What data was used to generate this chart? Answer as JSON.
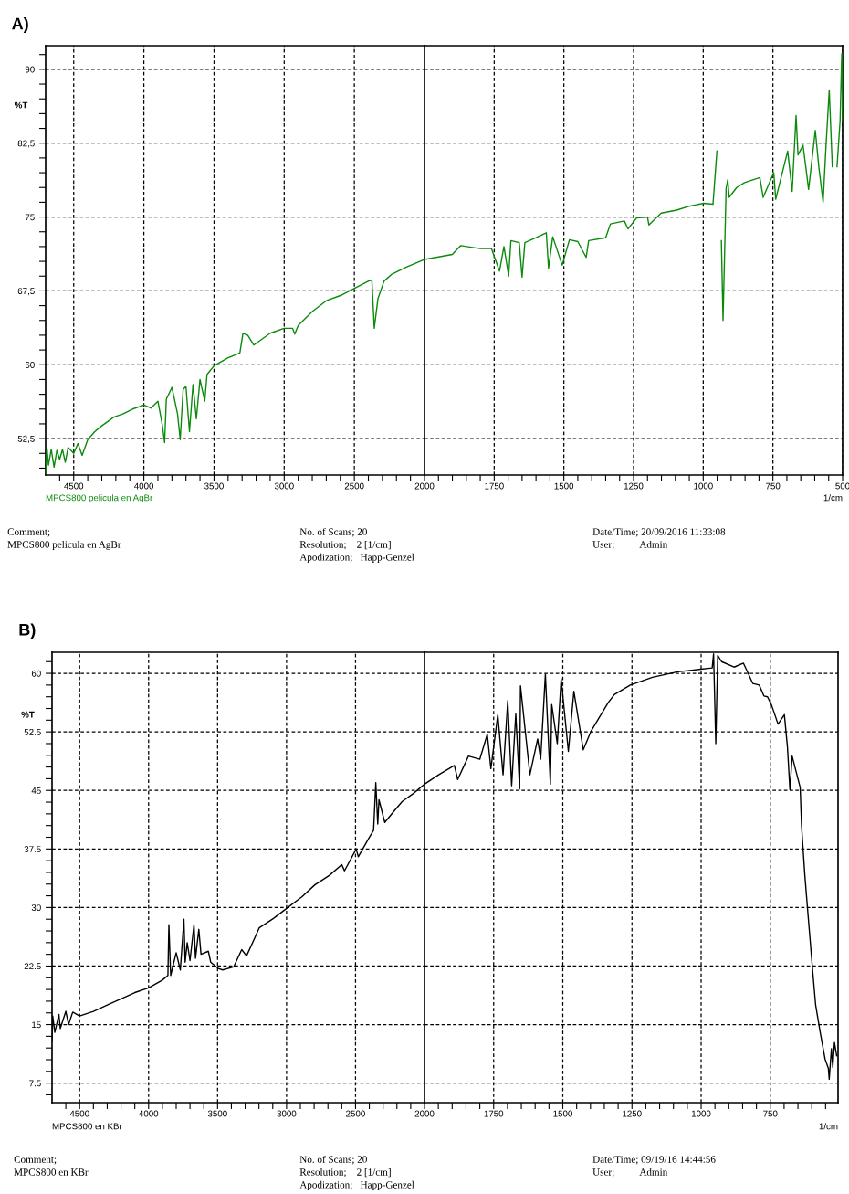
{
  "chart_data": [
    {
      "type": "line",
      "title": "A)",
      "ylabel": "%T",
      "grid": true,
      "line_style": "solid",
      "xlim": [
        4700,
        2000
      ],
      "ylim": [
        48.8,
        92.4
      ],
      "xticks": [
        4500,
        4000,
        3500,
        3000,
        2500,
        2000,
        {
          "value": 4600,
          "label": null
        },
        {
          "value": 4400,
          "label": null
        },
        {
          "value": 4300,
          "label": null
        },
        {
          "value": 4200,
          "label": null
        },
        {
          "value": 4100,
          "label": null
        },
        {
          "value": 3900,
          "label": null
        },
        {
          "value": 3800,
          "label": null
        },
        {
          "value": 3700,
          "label": null
        },
        {
          "value": 3600,
          "label": null
        },
        {
          "value": 3400,
          "label": null
        },
        {
          "value": 3300,
          "label": null
        },
        {
          "value": 3200,
          "label": null
        },
        {
          "value": 3100,
          "label": null
        },
        {
          "value": 2900,
          "label": null
        },
        {
          "value": 2800,
          "label": null
        },
        {
          "value": 2700,
          "label": null
        },
        {
          "value": 2600,
          "label": null
        },
        {
          "value": 2400,
          "label": null
        },
        {
          "value": 2300,
          "label": null
        },
        {
          "value": 2200,
          "label": null
        },
        {
          "value": 2100,
          "label": null
        }
      ],
      "yticks": [
        {
          "value": 52.5,
          "label": "52,5"
        },
        60,
        {
          "value": 67.5,
          "label": "67,5"
        },
        75,
        {
          "value": 82.5,
          "label": "82,5"
        },
        90,
        {
          "value": 49.5,
          "label": null
        },
        {
          "value": 51,
          "label": null
        },
        {
          "value": 54,
          "label": null
        },
        {
          "value": 55.5,
          "label": null
        },
        {
          "value": 57,
          "label": null
        },
        {
          "value": 58.5,
          "label": null
        },
        {
          "value": 61.5,
          "label": null
        },
        {
          "value": 63,
          "label": null
        },
        {
          "value": 64.5,
          "label": null
        },
        {
          "value": 66,
          "label": null
        },
        {
          "value": 69,
          "label": null
        },
        {
          "value": 70.5,
          "label": null
        },
        {
          "value": 72,
          "label": null
        },
        {
          "value": 73.5,
          "label": null
        },
        {
          "value": 76.5,
          "label": null
        },
        {
          "value": 78,
          "label": null
        },
        {
          "value": 79.5,
          "label": null
        },
        {
          "value": 81,
          "label": null
        },
        {
          "value": 84,
          "label": null
        },
        {
          "value": 85.5,
          "label": null
        },
        {
          "value": 87,
          "label": null
        },
        {
          "value": 88.5,
          "label": null
        },
        {
          "value": 91.5,
          "label": null
        }
      ],
      "series": [
        {
          "name": "MPCS800 pelicula en AgBr",
          "color": "#0a8a0a",
          "x": [
            4700,
            4690,
            4680,
            4660,
            4640,
            4620,
            4600,
            4580,
            4560,
            4540,
            4500,
            4470,
            4440,
            4400,
            4350,
            4300,
            4212,
            4150,
            4080,
            4000,
            3950,
            3900,
            3870,
            3852,
            3840,
            3800,
            3760,
            3741,
            3720,
            3700,
            3675,
            3650,
            3626,
            3600,
            3566,
            3550,
            3500,
            3400,
            3316,
            3294,
            3260,
            3217,
            3100,
            3000,
            2940,
            2925,
            2900,
            2800,
            2700,
            2586,
            2493,
            2398,
            2375,
            2358,
            2332,
            2288,
            2232,
            2133,
            2000
          ],
          "values": [
            48.9,
            51.5,
            49.8,
            51.4,
            49.6,
            51.3,
            50.4,
            51.4,
            50.1,
            51.6,
            51.0,
            52.0,
            50.8,
            52.4,
            53.2,
            53.8,
            54.7,
            55.0,
            55.5,
            55.9,
            55.6,
            56.3,
            54.0,
            52.1,
            56.5,
            57.7,
            55.0,
            52.4,
            57.5,
            57.8,
            53.2,
            58.0,
            54.5,
            58.5,
            56.3,
            59.0,
            59.9,
            60.7,
            61.2,
            63.2,
            63.0,
            62.0,
            63.2,
            63.7,
            63.7,
            63.1,
            64.0,
            65.4,
            66.5,
            67.1,
            67.8,
            68.5,
            68.6,
            63.7,
            66.7,
            68.5,
            69.2,
            69.9,
            70.7
          ]
        }
      ],
      "annotations": [
        "Comment;\nMPCS800 pelicula en AgBr",
        "No. of Scans; 20\nResolution;    2 [1/cm]\nApodization;   Happ-Genzel",
        "Date/Time; 20/09/2016 11:33:08\nUser;          Admin"
      ]
    },
    {
      "type": "line",
      "xlabel": "1/cm",
      "grid": true,
      "line_style": "solid",
      "tick_labels": "x",
      "xlim": [
        2000,
        500
      ],
      "ylim": [
        48.8,
        92.4
      ],
      "xticks": [
        1750,
        1500,
        1250,
        1000,
        750,
        500,
        {
          "value": 1950,
          "label": null
        },
        {
          "value": 1900,
          "label": null
        },
        {
          "value": 1850,
          "label": null
        },
        {
          "value": 1800,
          "label": null
        },
        {
          "value": 1700,
          "label": null
        },
        {
          "value": 1650,
          "label": null
        },
        {
          "value": 1600,
          "label": null
        },
        {
          "value": 1550,
          "label": null
        },
        {
          "value": 1450,
          "label": null
        },
        {
          "value": 1400,
          "label": null
        },
        {
          "value": 1350,
          "label": null
        },
        {
          "value": 1300,
          "label": null
        },
        {
          "value": 1200,
          "label": null
        },
        {
          "value": 1150,
          "label": null
        },
        {
          "value": 1100,
          "label": null
        },
        {
          "value": 1050,
          "label": null
        },
        {
          "value": 950,
          "label": null
        },
        {
          "value": 900,
          "label": null
        },
        {
          "value": 850,
          "label": null
        },
        {
          "value": 800,
          "label": null
        },
        {
          "value": 700,
          "label": null
        },
        {
          "value": 650,
          "label": null
        },
        {
          "value": 600,
          "label": null
        },
        {
          "value": 550,
          "label": null
        }
      ],
      "yticks": [
        52.5,
        60,
        67.5,
        75,
        82.5,
        90
      ],
      "series": [
        {
          "color": "#0a8a0a",
          "x": [
            2000,
            1900,
            1870,
            1800,
            1760,
            1731,
            1715,
            1698,
            1690,
            1660,
            1650,
            1640,
            1600,
            1563,
            1555,
            1540,
            1506,
            1480,
            1450,
            1420,
            1411,
            1350,
            1333,
            1283,
            1270,
            1239,
            1200,
            1195,
            1151,
            1095,
            1050,
            998,
            965,
            951,
            938,
            935,
            929,
            918,
            912,
            907,
            880,
            852,
            797,
            785,
            747,
            740,
            697,
            681,
            667,
            660,
            642,
            622,
            598,
            585,
            570,
            560,
            548,
            537,
            526,
            520,
            509,
            503,
            500
          ],
          "values": [
            70.7,
            71.2,
            72.1,
            71.8,
            71.8,
            69.5,
            72.0,
            69.0,
            72.6,
            72.4,
            68.9,
            72.4,
            72.9,
            73.4,
            69.8,
            73.0,
            70.1,
            72.7,
            72.5,
            70.9,
            72.6,
            72.9,
            74.3,
            74.6,
            73.8,
            74.9,
            75.0,
            74.2,
            75.4,
            75.7,
            76.1,
            76.4,
            76.3,
            81.7,
            null,
            72.6,
            64.5,
            77.9,
            78.8,
            77.0,
            78.0,
            78.5,
            79.0,
            77.0,
            79.5,
            76.8,
            81.7,
            77.6,
            85.3,
            81.3,
            82.3,
            77.8,
            83.8,
            80.0,
            76.5,
            82.0,
            87.9,
            80.1,
            null,
            80.1,
            84.8,
            91.6,
            84.8
          ]
        }
      ]
    },
    {
      "type": "line",
      "title": "B)",
      "ylabel": "%T",
      "grid": true,
      "line_style": "solid",
      "xlim": [
        4700,
        2000
      ],
      "ylim": [
        5.0,
        62.7
      ],
      "xticks": [
        4500,
        4000,
        3500,
        3000,
        2500,
        2000,
        {
          "value": 4600,
          "label": null
        },
        {
          "value": 4400,
          "label": null
        },
        {
          "value": 4300,
          "label": null
        },
        {
          "value": 4200,
          "label": null
        },
        {
          "value": 4100,
          "label": null
        },
        {
          "value": 3900,
          "label": null
        },
        {
          "value": 3800,
          "label": null
        },
        {
          "value": 3700,
          "label": null
        },
        {
          "value": 3600,
          "label": null
        },
        {
          "value": 3400,
          "label": null
        },
        {
          "value": 3300,
          "label": null
        },
        {
          "value": 3200,
          "label": null
        },
        {
          "value": 3100,
          "label": null
        },
        {
          "value": 2900,
          "label": null
        },
        {
          "value": 2800,
          "label": null
        },
        {
          "value": 2700,
          "label": null
        },
        {
          "value": 2600,
          "label": null
        },
        {
          "value": 2400,
          "label": null
        },
        {
          "value": 2300,
          "label": null
        },
        {
          "value": 2200,
          "label": null
        },
        {
          "value": 2100,
          "label": null
        }
      ],
      "yticks": [
        7.5,
        15,
        22.5,
        30,
        37.5,
        45,
        52.5,
        60,
        {
          "value": 6,
          "label": null
        },
        {
          "value": 9,
          "label": null
        },
        {
          "value": 10.5,
          "label": null
        },
        {
          "value": 12,
          "label": null
        },
        {
          "value": 13.5,
          "label": null
        },
        {
          "value": 16.5,
          "label": null
        },
        {
          "value": 18,
          "label": null
        },
        {
          "value": 19.5,
          "label": null
        },
        {
          "value": 21,
          "label": null
        },
        {
          "value": 24,
          "label": null
        },
        {
          "value": 25.5,
          "label": null
        },
        {
          "value": 27,
          "label": null
        },
        {
          "value": 28.5,
          "label": null
        },
        {
          "value": 31.5,
          "label": null
        },
        {
          "value": 33,
          "label": null
        },
        {
          "value": 34.5,
          "label": null
        },
        {
          "value": 36,
          "label": null
        },
        {
          "value": 39,
          "label": null
        },
        {
          "value": 40.5,
          "label": null
        },
        {
          "value": 42,
          "label": null
        },
        {
          "value": 43.5,
          "label": null
        },
        {
          "value": 46.5,
          "label": null
        },
        {
          "value": 48,
          "label": null
        },
        {
          "value": 49.5,
          "label": null
        },
        {
          "value": 51,
          "label": null
        },
        {
          "value": 54,
          "label": null
        },
        {
          "value": 55.5,
          "label": null
        },
        {
          "value": 57,
          "label": null
        },
        {
          "value": 58.5,
          "label": null
        },
        {
          "value": 61.5,
          "label": null
        }
      ],
      "series": [
        {
          "name": "MPCS800 en KBr",
          "color": "#000000",
          "x": [
            4700,
            4695,
            4680,
            4650,
            4640,
            4600,
            4580,
            4550,
            4500,
            4400,
            4300,
            4200,
            4100,
            4000,
            3900,
            3860,
            3853,
            3840,
            3800,
            3770,
            3744,
            3735,
            3720,
            3700,
            3671,
            3660,
            3636,
            3620,
            3567,
            3550,
            3495,
            3463,
            3383,
            3325,
            3290,
            3233,
            3198,
            3095,
            2991,
            2887,
            2795,
            2691,
            2600,
            2580,
            2495,
            2480,
            2403,
            2369,
            2353,
            2339,
            2330,
            2288,
            2219,
            2161,
            2081,
            2000
          ],
          "values": [
            12.9,
            16.1,
            14.0,
            16.3,
            14.5,
            16.7,
            15.0,
            16.6,
            16.1,
            16.7,
            17.5,
            18.3,
            19.1,
            19.7,
            20.7,
            21.3,
            27.8,
            21.3,
            24.2,
            22.0,
            28.5,
            23.0,
            25.5,
            23.2,
            27.8,
            23.5,
            27.2,
            24.0,
            24.4,
            23.0,
            22.2,
            22.0,
            22.4,
            24.6,
            23.8,
            26.0,
            27.4,
            28.6,
            30.0,
            31.4,
            32.9,
            34.1,
            35.5,
            34.7,
            37.5,
            36.5,
            38.9,
            39.9,
            46.0,
            40.7,
            43.8,
            40.9,
            42.4,
            43.6,
            44.6,
            45.8
          ]
        }
      ],
      "annotations": [
        "Comment;\nMPCS800 en KBr",
        "No. of Scans; 20\nResolution;    2 [1/cm]\nApodization;   Happ-Genzel",
        "Date/Time; 09/19/16 14:44:56\nUser;          Admin"
      ]
    },
    {
      "type": "line",
      "xlabel": "1/cm",
      "grid": true,
      "line_style": "solid",
      "tick_labels": "x",
      "xlim": [
        2000,
        505
      ],
      "ylim": [
        5.0,
        62.7
      ],
      "xticks": [
        1750,
        1500,
        1250,
        1000,
        750,
        {
          "value": 1950,
          "label": null
        },
        {
          "value": 1900,
          "label": null
        },
        {
          "value": 1850,
          "label": null
        },
        {
          "value": 1800,
          "label": null
        },
        {
          "value": 1700,
          "label": null
        },
        {
          "value": 1650,
          "label": null
        },
        {
          "value": 1600,
          "label": null
        },
        {
          "value": 1550,
          "label": null
        },
        {
          "value": 1450,
          "label": null
        },
        {
          "value": 1400,
          "label": null
        },
        {
          "value": 1350,
          "label": null
        },
        {
          "value": 1300,
          "label": null
        },
        {
          "value": 1200,
          "label": null
        },
        {
          "value": 1150,
          "label": null
        },
        {
          "value": 1100,
          "label": null
        },
        {
          "value": 1050,
          "label": null
        },
        {
          "value": 950,
          "label": null
        },
        {
          "value": 900,
          "label": null
        },
        {
          "value": 850,
          "label": null
        },
        {
          "value": 800,
          "label": null
        },
        {
          "value": 700,
          "label": null
        },
        {
          "value": 650,
          "label": null
        },
        {
          "value": 600,
          "label": null
        },
        {
          "value": 550,
          "label": null
        }
      ],
      "yticks": [
        7.5,
        15,
        22.5,
        30,
        37.5,
        45,
        52.5,
        60
      ],
      "series": [
        {
          "color": "#000000",
          "x": [
            2000,
            1949,
            1892,
            1880,
            1841,
            1800,
            1773,
            1760,
            1735,
            1716,
            1699,
            1685,
            1670,
            1656,
            1653,
            1619,
            1591,
            1580,
            1563,
            1545,
            1540,
            1520,
            1506,
            1480,
            1460,
            1426,
            1398,
            1335,
            1313,
            1256,
            1176,
            1085,
            1008,
            960,
            955,
            947,
            940,
            926,
            881,
            847,
            813,
            790,
            773,
            760,
            745,
            722,
            699,
            688,
            679,
            671,
            642,
            637,
            625,
            611,
            597,
            586,
            569,
            552,
            540,
            537,
            529,
            524,
            518,
            510
          ],
          "values": [
            45.8,
            47.0,
            48.2,
            46.4,
            49.4,
            49.0,
            52.2,
            47.8,
            54.7,
            47.0,
            56.5,
            45.6,
            54.8,
            45.2,
            58.4,
            47.0,
            51.6,
            49.0,
            59.9,
            45.8,
            56.0,
            51.0,
            59.3,
            50.0,
            57.7,
            50.2,
            52.6,
            56.3,
            57.3,
            58.5,
            59.5,
            60.2,
            60.5,
            60.7,
            62.5,
            51.0,
            62.3,
            61.5,
            60.8,
            61.3,
            58.7,
            58.5,
            57.1,
            57.0,
            55.9,
            53.5,
            54.7,
            50.6,
            45.1,
            49.4,
            45.4,
            40.5,
            34.1,
            28.0,
            22.0,
            17.5,
            13.9,
            10.6,
            9.4,
            8.0,
            11.9,
            9.5,
            12.7,
            11.0
          ]
        }
      ]
    }
  ]
}
